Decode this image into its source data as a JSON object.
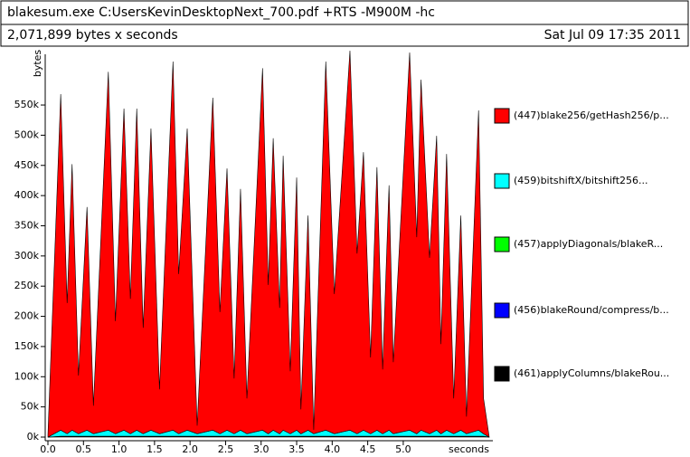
{
  "header": {
    "title": "blakesum.exe C:UsersKevinDesktopNext_700.pdf +RTS -M900M -hc",
    "summary": "2,071,899 bytes x seconds",
    "date": "Sat Jul 09 17:35 2011"
  },
  "chart_data": {
    "type": "stacked-area",
    "ylabel": "bytes",
    "xlabel": "seconds",
    "x": [
      0.0,
      0.18,
      0.27,
      0.34,
      0.43,
      0.55,
      0.64,
      0.85,
      0.95,
      1.07,
      1.16,
      1.25,
      1.34,
      1.45,
      1.57,
      1.76,
      1.84,
      1.96,
      2.1,
      2.32,
      2.42,
      2.52,
      2.62,
      2.71,
      2.8,
      3.02,
      3.1,
      3.17,
      3.26,
      3.31,
      3.41,
      3.5,
      3.56,
      3.66,
      3.74,
      3.91,
      4.03,
      4.25,
      4.35,
      4.44,
      4.54,
      4.63,
      4.71,
      4.8,
      4.86,
      5.09,
      5.19,
      5.25,
      5.37,
      5.47,
      5.53,
      5.61,
      5.71,
      5.81,
      5.89,
      6.06,
      6.13,
      6.21
    ],
    "series": [
      {
        "name": "(447)blake256/getHash256/p...",
        "color": "#ff0000",
        "values": [
          4000,
          556500,
          216500,
          440500,
          96500,
          369500,
          46500,
          593500,
          186500,
          532500,
          223500,
          532500,
          175500,
          499500,
          73500,
          610500,
          264500,
          499500,
          13500,
          550500,
          201500,
          433500,
          91500,
          399500,
          58500,
          599500,
          246500,
          483500,
          208500,
          454500,
          103500,
          418500,
          40500,
          355500,
          6500,
          610500,
          231500,
          628500,
          298500,
          460500,
          126500,
          435500,
          106500,
          405500,
          118500,
          625500,
          325500,
          580500,
          291500,
          487500,
          148500,
          457500,
          58500,
          355500,
          28500,
          529500,
          58500,
          0
        ]
      },
      {
        "name": "(459)bitshiftX/bitshift256...",
        "color": "#00ffff",
        "values": [
          0,
          10000,
          4000,
          10000,
          4000,
          10000,
          4000,
          10000,
          4000,
          10000,
          4000,
          10000,
          4000,
          10000,
          4000,
          10000,
          4000,
          10000,
          4000,
          10000,
          4000,
          10000,
          4000,
          10000,
          4000,
          10000,
          4000,
          10000,
          4000,
          10000,
          4000,
          10000,
          4000,
          10000,
          4000,
          10000,
          4000,
          10000,
          4000,
          10000,
          4000,
          10000,
          4000,
          10000,
          4000,
          10000,
          4000,
          10000,
          4000,
          10000,
          4000,
          10000,
          4000,
          10000,
          4000,
          10000,
          4000,
          0
        ]
      },
      {
        "name": "(457)applyDiagonals/blakeR...",
        "color": "#00ff00",
        "values": [
          0,
          500,
          500,
          500,
          500,
          500,
          500,
          500,
          500,
          500,
          500,
          500,
          500,
          500,
          500,
          500,
          500,
          500,
          500,
          500,
          500,
          500,
          500,
          500,
          500,
          500,
          500,
          500,
          500,
          500,
          500,
          500,
          500,
          500,
          500,
          500,
          500,
          500,
          500,
          500,
          500,
          500,
          500,
          500,
          500,
          500,
          500,
          500,
          500,
          500,
          500,
          500,
          500,
          500,
          500,
          500,
          500,
          0
        ]
      },
      {
        "name": "(456)blakeRound/compress/b...",
        "color": "#0000ff",
        "values": [
          0,
          500,
          500,
          500,
          500,
          500,
          500,
          500,
          500,
          500,
          500,
          500,
          500,
          500,
          500,
          500,
          500,
          500,
          500,
          500,
          500,
          500,
          500,
          500,
          500,
          500,
          500,
          500,
          500,
          500,
          500,
          500,
          500,
          500,
          500,
          500,
          500,
          500,
          500,
          500,
          500,
          500,
          500,
          500,
          500,
          500,
          500,
          500,
          500,
          500,
          500,
          500,
          500,
          500,
          500,
          500,
          500,
          0
        ]
      },
      {
        "name": "(461)applyColumns/blakeRou...",
        "color": "#000000",
        "values": [
          0,
          500,
          500,
          500,
          500,
          500,
          500,
          500,
          500,
          500,
          500,
          500,
          500,
          500,
          500,
          500,
          500,
          500,
          500,
          500,
          500,
          500,
          500,
          500,
          500,
          500,
          500,
          500,
          500,
          500,
          500,
          500,
          500,
          500,
          500,
          500,
          500,
          500,
          500,
          500,
          500,
          500,
          500,
          500,
          500,
          500,
          500,
          500,
          500,
          500,
          500,
          500,
          500,
          500,
          500,
          500,
          500,
          0
        ]
      }
    ],
    "xlim": [
      0,
      6.21
    ],
    "ylim": [
      0,
      640000
    ],
    "xticks": [
      {
        "value": 0,
        "label": "0.0"
      },
      {
        "value": 0.5,
        "label": "0.5"
      },
      {
        "value": 1,
        "label": "1.0"
      },
      {
        "value": 1.5,
        "label": "1.5"
      },
      {
        "value": 2,
        "label": "2.0"
      },
      {
        "value": 2.5,
        "label": "2.5"
      },
      {
        "value": 3,
        "label": "3.0"
      },
      {
        "value": 3.5,
        "label": "3.5"
      },
      {
        "value": 4,
        "label": "4.0"
      },
      {
        "value": 4.5,
        "label": "4.5"
      },
      {
        "value": 5,
        "label": "5.0"
      }
    ],
    "yticks": [
      {
        "value": 0,
        "label": "0k"
      },
      {
        "value": 50000,
        "label": "50k"
      },
      {
        "value": 100000,
        "label": "100k"
      },
      {
        "value": 150000,
        "label": "150k"
      },
      {
        "value": 200000,
        "label": "200k"
      },
      {
        "value": 250000,
        "label": "250k"
      },
      {
        "value": 300000,
        "label": "300k"
      },
      {
        "value": 350000,
        "label": "350k"
      },
      {
        "value": 400000,
        "label": "400k"
      },
      {
        "value": 450000,
        "label": "450k"
      },
      {
        "value": 500000,
        "label": "500k"
      },
      {
        "value": 550000,
        "label": "550k"
      }
    ]
  }
}
